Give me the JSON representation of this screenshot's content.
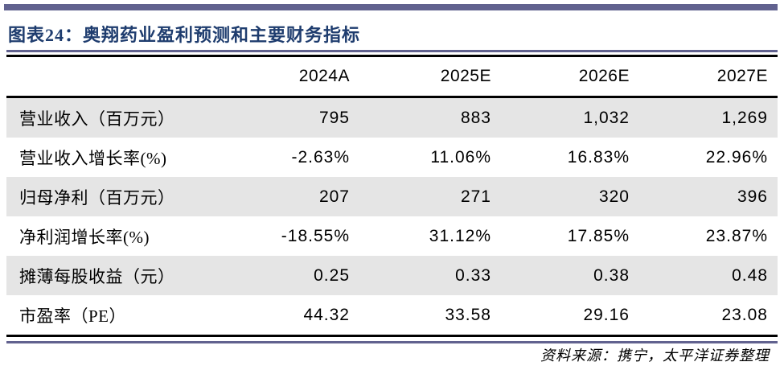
{
  "header": {
    "title": "图表24：奥翔药业盈利预测和主要财务指标"
  },
  "table": {
    "columns": [
      "2024A",
      "2025E",
      "2026E",
      "2027E"
    ],
    "rows": [
      {
        "label": "营业收入（百万元）",
        "values": [
          "795",
          "883",
          "1,032",
          "1,269"
        ]
      },
      {
        "label": "营业收入增长率(%)",
        "values": [
          "-2.63%",
          "11.06%",
          "16.83%",
          "22.96%"
        ]
      },
      {
        "label": "归母净利（百万元）",
        "values": [
          "207",
          "271",
          "320",
          "396"
        ]
      },
      {
        "label": "净利润增长率(%)",
        "values": [
          "-18.55%",
          "31.12%",
          "17.85%",
          "23.87%"
        ]
      },
      {
        "label": "摊薄每股收益（元）",
        "values": [
          "0.25",
          "0.33",
          "0.38",
          "0.48"
        ]
      },
      {
        "label": "市盈率（PE）",
        "values": [
          "44.32",
          "33.58",
          "29.16",
          "23.08"
        ]
      }
    ]
  },
  "footer": {
    "source": "资料来源：携宁，太平洋证券整理"
  },
  "colors": {
    "accent_purple": "#61628F",
    "title_navy": "#1E3C6E",
    "row_shade": "#E5E5E5",
    "rule_black": "#000000"
  }
}
